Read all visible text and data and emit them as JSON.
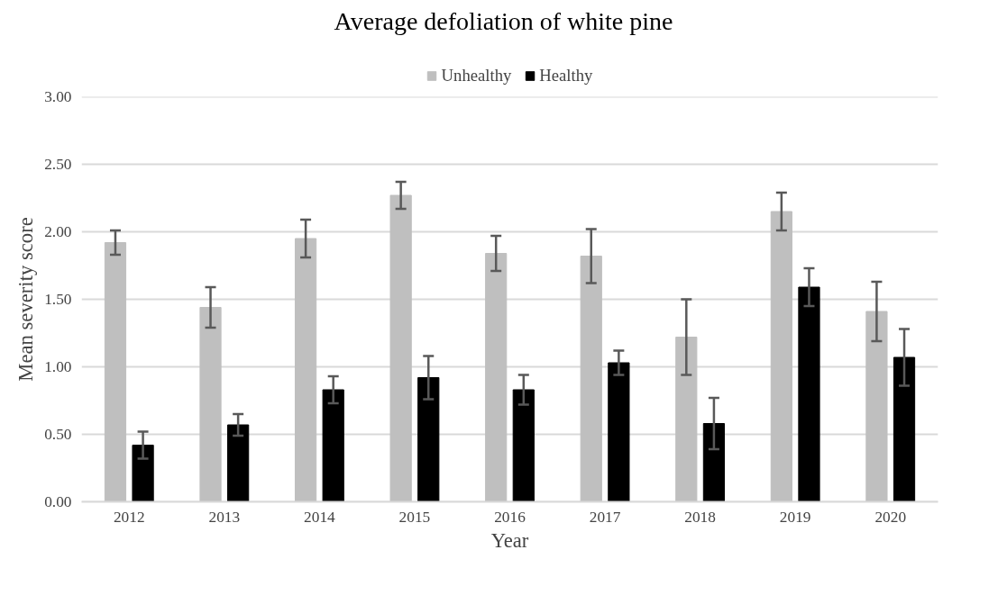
{
  "chart_data": {
    "type": "bar",
    "title": "Average  defoliation  of white pine",
    "xlabel": "Year",
    "ylabel": "Mean severity score",
    "categories": [
      "2012",
      "2013",
      "2014",
      "2015",
      "2016",
      "2017",
      "2018",
      "2019",
      "2020"
    ],
    "series": [
      {
        "name": "Unhealthy",
        "color": "#bfbfbf",
        "values": [
          1.92,
          1.44,
          1.95,
          2.27,
          1.84,
          1.82,
          1.22,
          2.15,
          1.41
        ],
        "errors": [
          0.09,
          0.15,
          0.14,
          0.1,
          0.13,
          0.2,
          0.28,
          0.14,
          0.22
        ]
      },
      {
        "name": "Healthy",
        "color": "#000000",
        "values": [
          0.42,
          0.57,
          0.83,
          0.92,
          0.83,
          1.03,
          0.58,
          1.59,
          1.07
        ],
        "errors": [
          0.1,
          0.08,
          0.1,
          0.16,
          0.11,
          0.09,
          0.19,
          0.14,
          0.21
        ]
      }
    ],
    "ylim": [
      0,
      3
    ],
    "yticks": [
      {
        "value": 0,
        "label": "0.00"
      },
      {
        "value": 0.5,
        "label": "0.50"
      },
      {
        "value": 1,
        "label": "1.00"
      },
      {
        "value": 1.5,
        "label": "1.50"
      },
      {
        "value": 2,
        "label": "2.00"
      },
      {
        "value": 2.5,
        "label": "2.50"
      },
      {
        "value": 3,
        "label": "3.00"
      }
    ],
    "grid": "y",
    "legend": "top"
  }
}
